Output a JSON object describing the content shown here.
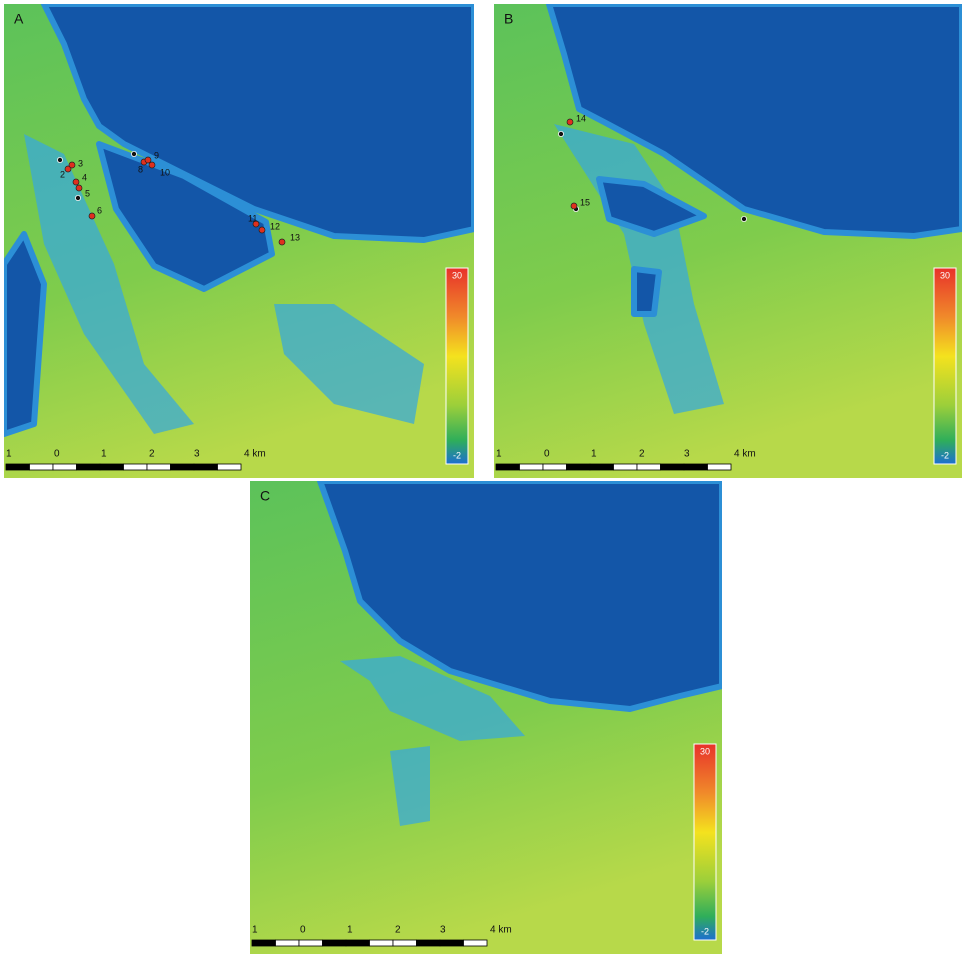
{
  "panels": [
    {
      "label": "A",
      "points": [
        "2",
        "3",
        "4",
        "5",
        "6",
        "8",
        "9",
        "10",
        "11",
        "12",
        "13"
      ],
      "scale_bar": [
        "1",
        "0",
        "1",
        "2",
        "3",
        "4 km"
      ],
      "legend": {
        "max": "30",
        "min": "-2"
      }
    },
    {
      "label": "B",
      "points": [
        "14",
        "15"
      ],
      "scale_bar": [
        "1",
        "0",
        "1",
        "2",
        "3",
        "4 km"
      ],
      "legend": {
        "max": "30",
        "min": "-2"
      }
    },
    {
      "label": "C",
      "points": [],
      "scale_bar": [
        "1",
        "0",
        "1",
        "2",
        "3",
        "4 km"
      ],
      "legend": {
        "max": "30",
        "min": "-2"
      }
    }
  ]
}
